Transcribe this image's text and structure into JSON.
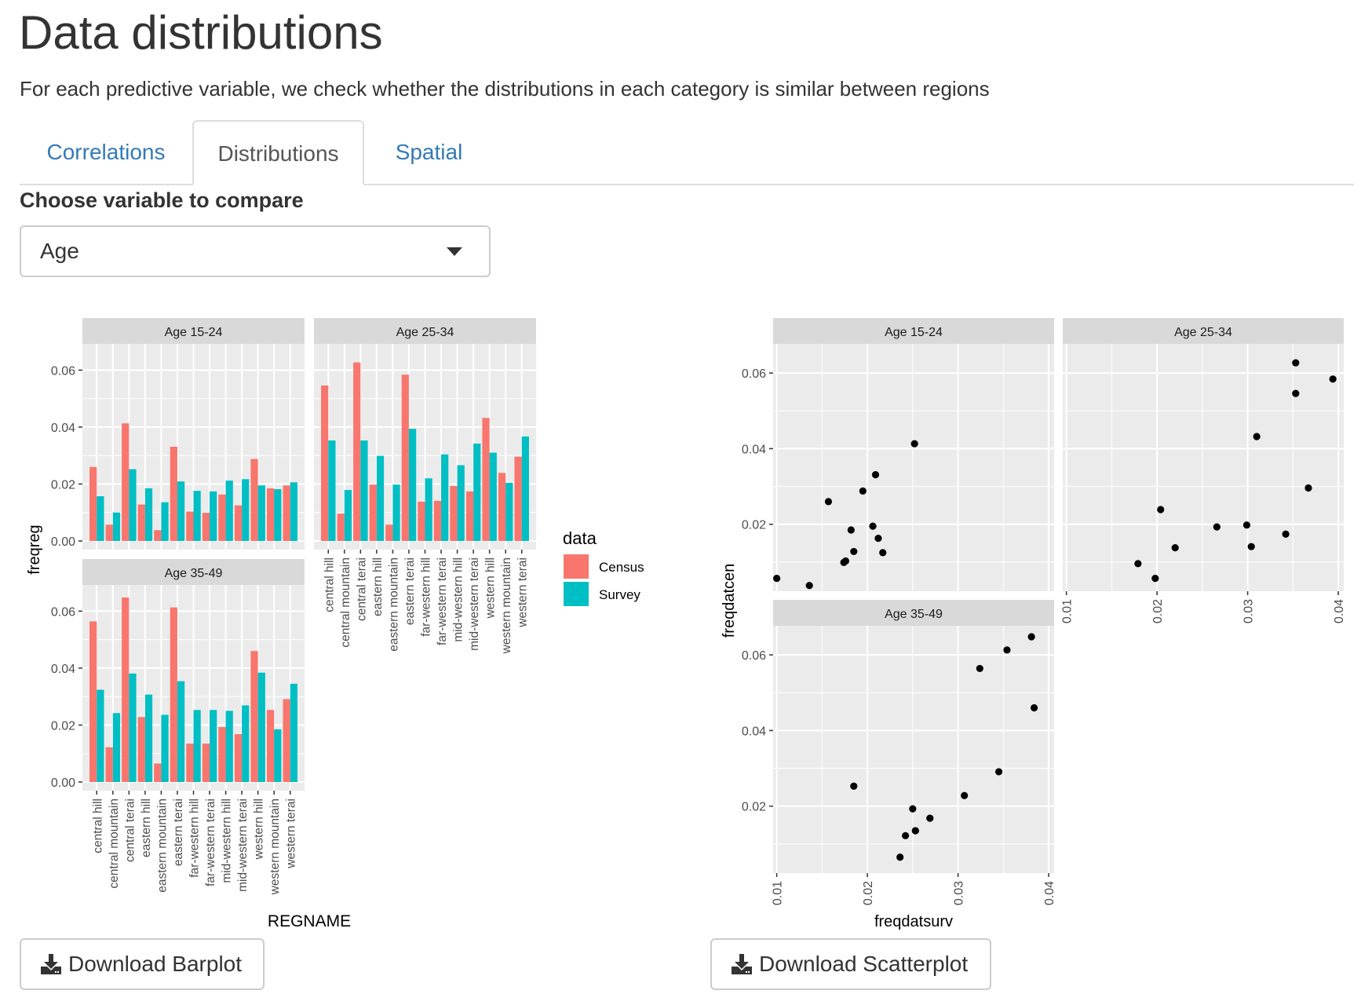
{
  "page": {
    "title": "Data distributions",
    "subtitle": "For each predictive variable, we check whether the distributions in each category is similar between regions"
  },
  "tabs": [
    {
      "label": "Correlations",
      "active": false
    },
    {
      "label": "Distributions",
      "active": true
    },
    {
      "label": "Spatial",
      "active": false
    }
  ],
  "controls": {
    "select_label": "Choose variable to compare",
    "select_value": "Age",
    "select_icon": "caret-down-icon"
  },
  "buttons": {
    "download_barplot": "Download Barplot",
    "download_scatterplot": "Download Scatterplot",
    "icon": "download-icon"
  },
  "colors": {
    "census": "#F8766D",
    "survey": "#00BFC4",
    "panel_bg": "#EBEBEB",
    "strip_bg": "#D9D9D9",
    "link": "#337ab7"
  },
  "chart_data": [
    {
      "type": "bar",
      "title": "",
      "xlabel": "REGNAME",
      "ylabel": "freqreg",
      "ylim": [
        0,
        0.07
      ],
      "yticks": [
        "0.00",
        "0.02",
        "0.04",
        "0.06"
      ],
      "ytick_values": [
        0,
        0.02,
        0.04,
        0.06
      ],
      "legend": {
        "title": "data",
        "entries": [
          "Census",
          "Survey"
        ],
        "position": "right"
      },
      "categories": [
        "central hill",
        "central mountain",
        "central terai",
        "eastern hill",
        "eastern mountain",
        "eastern terai",
        "far-western hill",
        "far-western terai",
        "mid-western hill",
        "mid-western terai",
        "western hill",
        "western mountain",
        "western terai"
      ],
      "facets": [
        {
          "label": "Age 15-24",
          "series": [
            {
              "name": "Census",
              "values": [
                0.026,
                0.0057,
                0.0413,
                0.0128,
                0.0038,
                0.0331,
                0.0103,
                0.0099,
                0.0163,
                0.0125,
                0.0288,
                0.0185,
                0.0195
              ]
            },
            {
              "name": "Survey",
              "values": [
                0.0157,
                0.01,
                0.0252,
                0.0185,
                0.0136,
                0.0209,
                0.0176,
                0.0174,
                0.0212,
                0.0217,
                0.0195,
                0.0182,
                0.0206
              ]
            }
          ]
        },
        {
          "label": "Age 25-34",
          "series": [
            {
              "name": "Census",
              "values": [
                0.0546,
                0.0096,
                0.0627,
                0.0198,
                0.0057,
                0.0584,
                0.0138,
                0.0141,
                0.0193,
                0.0174,
                0.0432,
                0.0239,
                0.0296
              ]
            },
            {
              "name": "Survey",
              "values": [
                0.0353,
                0.0179,
                0.0353,
                0.0299,
                0.0198,
                0.0394,
                0.022,
                0.0304,
                0.0266,
                0.0342,
                0.031,
                0.0204,
                0.0367
              ]
            }
          ]
        },
        {
          "label": "Age 35-49",
          "series": [
            {
              "name": "Census",
              "values": [
                0.0564,
                0.0122,
                0.0648,
                0.0228,
                0.0065,
                0.0613,
                0.0135,
                0.0135,
                0.0193,
                0.0168,
                0.046,
                0.0253,
                0.0291
              ]
            },
            {
              "name": "Survey",
              "values": [
                0.0324,
                0.0242,
                0.0381,
                0.0307,
                0.0236,
                0.0354,
                0.0253,
                0.0253,
                0.025,
                0.0269,
                0.0384,
                0.0185,
                0.0345
              ]
            }
          ]
        }
      ]
    },
    {
      "type": "scatter",
      "title": "",
      "xlabel": "freqdatsurv",
      "ylabel": "freqdatcen",
      "xlim": [
        0.0096,
        0.0406
      ],
      "ylim": [
        0.0023,
        0.0677
      ],
      "xticks": [
        "0.01",
        "0.02",
        "0.03",
        "0.04"
      ],
      "xtick_values": [
        0.01,
        0.02,
        0.03,
        0.04
      ],
      "yticks": [
        "0.02",
        "0.04",
        "0.06"
      ],
      "ytick_values": [
        0.02,
        0.04,
        0.06
      ],
      "facets": [
        {
          "label": "Age 15-24",
          "points": [
            [
              0.0157,
              0.026
            ],
            [
              0.01,
              0.0057
            ],
            [
              0.0252,
              0.0413
            ],
            [
              0.0185,
              0.0128
            ],
            [
              0.0136,
              0.0038
            ],
            [
              0.0209,
              0.0331
            ],
            [
              0.0176,
              0.0103
            ],
            [
              0.0174,
              0.0099
            ],
            [
              0.0212,
              0.0163
            ],
            [
              0.0217,
              0.0125
            ],
            [
              0.0195,
              0.0288
            ],
            [
              0.0182,
              0.0185
            ],
            [
              0.0206,
              0.0195
            ]
          ]
        },
        {
          "label": "Age 25-34",
          "points": [
            [
              0.0353,
              0.0546
            ],
            [
              0.0179,
              0.0096
            ],
            [
              0.0353,
              0.0627
            ],
            [
              0.0299,
              0.0198
            ],
            [
              0.0198,
              0.0057
            ],
            [
              0.0394,
              0.0584
            ],
            [
              0.022,
              0.0138
            ],
            [
              0.0304,
              0.0141
            ],
            [
              0.0266,
              0.0193
            ],
            [
              0.0342,
              0.0174
            ],
            [
              0.031,
              0.0432
            ],
            [
              0.0204,
              0.0239
            ],
            [
              0.0367,
              0.0296
            ]
          ]
        },
        {
          "label": "Age 35-49",
          "points": [
            [
              0.0324,
              0.0564
            ],
            [
              0.0242,
              0.0122
            ],
            [
              0.0381,
              0.0648
            ],
            [
              0.0307,
              0.0228
            ],
            [
              0.0236,
              0.0065
            ],
            [
              0.0354,
              0.0613
            ],
            [
              0.0253,
              0.0135
            ],
            [
              0.0253,
              0.0135
            ],
            [
              0.025,
              0.0193
            ],
            [
              0.0269,
              0.0168
            ],
            [
              0.0384,
              0.046
            ],
            [
              0.0185,
              0.0253
            ],
            [
              0.0345,
              0.0291
            ]
          ]
        }
      ]
    }
  ]
}
